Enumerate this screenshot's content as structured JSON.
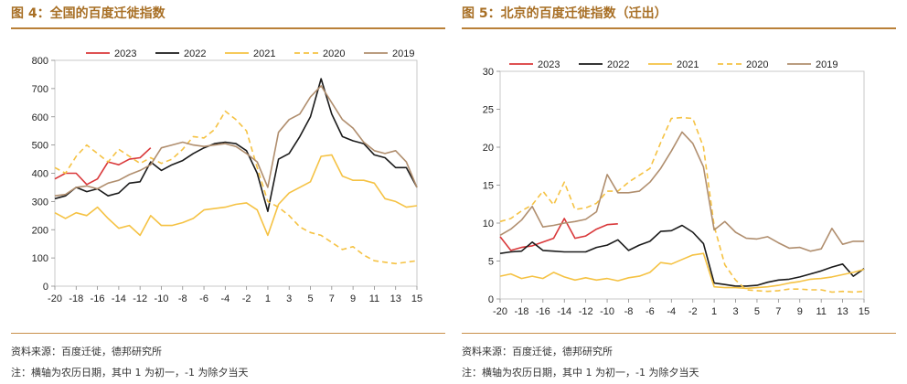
{
  "left": {
    "title": "图 4：全国的百度迁徙指数",
    "source": "资料来源：百度迁徙，德邦研究所",
    "note": "注：横轴为农历日期，其中 1 为初一，-1 为除夕当天"
  },
  "right": {
    "title": "图 5：北京的百度迁徙指数（迁出）",
    "source": "资料来源：百度迁徙，德邦研究所",
    "note": "注：横轴为农历日期，其中 1 为初一，-1 为除夕当天"
  },
  "colors": {
    "2023": "#d9383a",
    "2022": "#1a1a1a",
    "2021": "#f5c243",
    "2020": "#f5c243",
    "2019": "#b08e6e",
    "accent_title": "#a86f25"
  },
  "chart_data": [
    {
      "type": "line",
      "title": "",
      "xlabel": "",
      "ylabel": "",
      "x": [
        -20,
        -19,
        -18,
        -17,
        -16,
        -15,
        -14,
        -13,
        -12,
        -11,
        -10,
        -9,
        -8,
        -7,
        -6,
        -5,
        -4,
        -3,
        -2,
        -1,
        1,
        2,
        3,
        4,
        5,
        6,
        7,
        8,
        9,
        10,
        11,
        12,
        13,
        14,
        15
      ],
      "xticks": [
        -20,
        -18,
        -16,
        -14,
        -12,
        -10,
        -8,
        -6,
        -4,
        -2,
        1,
        3,
        5,
        7,
        9,
        11,
        13,
        15
      ],
      "xtick_labels": [
        "-20",
        "-18",
        "-16",
        "-14",
        "-12",
        "-10",
        "-8",
        "-6",
        "-4",
        "-2",
        "1",
        "3",
        "5",
        "7",
        "9",
        "11",
        "13",
        "15"
      ],
      "ylim": [
        0,
        800
      ],
      "yticks": [
        0,
        100,
        200,
        300,
        400,
        500,
        600,
        700,
        800
      ],
      "ytick_labels": [
        "0",
        "100",
        "200",
        "300",
        "400",
        "500",
        "600",
        "700",
        "800"
      ],
      "legend_position": "top",
      "series": [
        {
          "name": "2023",
          "style": "solid",
          "values": [
            380,
            400,
            400,
            360,
            380,
            440,
            430,
            450,
            455,
            490,
            null,
            null,
            null,
            null,
            null,
            null,
            null,
            null,
            null,
            null,
            null,
            null,
            null,
            null,
            null,
            null,
            null,
            null,
            null,
            null,
            null,
            null,
            null,
            null,
            null
          ]
        },
        {
          "name": "2022",
          "style": "solid",
          "values": [
            310,
            320,
            350,
            335,
            345,
            320,
            330,
            365,
            370,
            440,
            410,
            430,
            445,
            470,
            490,
            505,
            510,
            505,
            480,
            400,
            265,
            450,
            470,
            530,
            600,
            735,
            610,
            530,
            515,
            505,
            465,
            455,
            420,
            420,
            350
          ]
        },
        {
          "name": "2021",
          "style": "solid",
          "values": [
            260,
            240,
            260,
            250,
            280,
            240,
            205,
            215,
            180,
            250,
            215,
            215,
            225,
            240,
            270,
            275,
            280,
            290,
            295,
            270,
            180,
            290,
            330,
            350,
            370,
            460,
            465,
            390,
            375,
            375,
            365,
            310,
            300,
            280,
            285
          ]
        },
        {
          "name": "2020",
          "style": "dashed",
          "values": [
            420,
            400,
            460,
            500,
            470,
            440,
            485,
            460,
            435,
            455,
            435,
            450,
            485,
            530,
            525,
            555,
            620,
            590,
            550,
            420,
            300,
            280,
            250,
            210,
            190,
            180,
            155,
            130,
            140,
            110,
            90,
            85,
            80,
            85,
            90
          ]
        },
        {
          "name": "2019",
          "style": "solid",
          "values": [
            320,
            325,
            350,
            355,
            345,
            365,
            375,
            395,
            410,
            430,
            490,
            500,
            510,
            500,
            495,
            500,
            505,
            495,
            470,
            440,
            350,
            545,
            590,
            610,
            670,
            710,
            650,
            590,
            560,
            510,
            480,
            470,
            480,
            440,
            350
          ]
        }
      ]
    },
    {
      "type": "line",
      "title": "",
      "xlabel": "",
      "ylabel": "",
      "x": [
        -20,
        -19,
        -18,
        -17,
        -16,
        -15,
        -14,
        -13,
        -12,
        -11,
        -10,
        -9,
        -8,
        -7,
        -6,
        -5,
        -4,
        -3,
        -2,
        -1,
        1,
        2,
        3,
        4,
        5,
        6,
        7,
        8,
        9,
        10,
        11,
        12,
        13,
        14,
        15
      ],
      "xticks": [
        -20,
        -18,
        -16,
        -14,
        -12,
        -10,
        -8,
        -6,
        -4,
        -2,
        1,
        3,
        5,
        7,
        9,
        11,
        13,
        15
      ],
      "xtick_labels": [
        "-20",
        "-18",
        "-16",
        "-14",
        "-12",
        "-10",
        "-8",
        "-6",
        "-4",
        "-2",
        "1",
        "3",
        "5",
        "7",
        "9",
        "11",
        "13",
        "15"
      ],
      "ylim": [
        0,
        30
      ],
      "yticks": [
        0,
        5,
        10,
        15,
        20,
        25,
        30
      ],
      "ytick_labels": [
        "0",
        "5",
        "10",
        "15",
        "20",
        "25",
        "30"
      ],
      "legend_position": "top",
      "series": [
        {
          "name": "2023",
          "style": "solid",
          "values": [
            8.2,
            6.4,
            6.8,
            7.0,
            7.5,
            8.0,
            10.6,
            8.0,
            8.3,
            9.2,
            9.8,
            9.9,
            null,
            null,
            null,
            null,
            null,
            null,
            null,
            null,
            null,
            null,
            null,
            null,
            null,
            null,
            null,
            null,
            null,
            null,
            null,
            null,
            null,
            null,
            null
          ]
        },
        {
          "name": "2022",
          "style": "solid",
          "values": [
            6.0,
            6.2,
            6.3,
            7.5,
            6.4,
            6.3,
            6.2,
            6.2,
            6.2,
            6.8,
            7.1,
            7.8,
            6.4,
            7.1,
            7.6,
            8.9,
            9.0,
            9.7,
            8.8,
            7.3,
            2.1,
            1.9,
            1.7,
            1.7,
            1.8,
            2.2,
            2.5,
            2.6,
            2.9,
            3.3,
            3.7,
            4.2,
            4.6,
            3.0,
            4.0
          ]
        },
        {
          "name": "2021",
          "style": "solid",
          "values": [
            3.0,
            3.3,
            2.7,
            3.0,
            2.7,
            3.5,
            2.9,
            2.5,
            2.8,
            2.5,
            2.7,
            2.4,
            2.8,
            3.0,
            3.5,
            4.8,
            4.6,
            5.2,
            5.8,
            6.0,
            1.6,
            1.5,
            1.5,
            1.4,
            1.5,
            1.6,
            1.8,
            2.1,
            2.3,
            2.6,
            2.7,
            2.9,
            3.2,
            3.5,
            3.9
          ]
        },
        {
          "name": "2020",
          "style": "dashed",
          "values": [
            10.2,
            10.6,
            11.6,
            12.4,
            14.2,
            12.4,
            15.4,
            11.8,
            12.0,
            12.6,
            14.2,
            14.2,
            15.4,
            16.3,
            17.2,
            20.6,
            23.8,
            23.9,
            23.8,
            20.0,
            9.6,
            4.5,
            2.5,
            1.2,
            1.1,
            1.0,
            1.1,
            1.3,
            1.3,
            1.2,
            1.2,
            0.9,
            1.0,
            0.9,
            1.0
          ]
        },
        {
          "name": "2019",
          "style": "solid",
          "values": [
            8.4,
            9.2,
            10.4,
            12.2,
            9.5,
            9.7,
            10.0,
            10.2,
            10.5,
            11.5,
            16.4,
            14.0,
            14.0,
            14.2,
            15.4,
            17.2,
            19.5,
            22.0,
            20.5,
            17.4,
            9.1,
            10.2,
            8.8,
            8.0,
            7.9,
            8.2,
            7.4,
            6.7,
            6.8,
            6.3,
            6.6,
            9.3,
            7.2,
            7.6,
            7.6
          ]
        }
      ]
    }
  ]
}
